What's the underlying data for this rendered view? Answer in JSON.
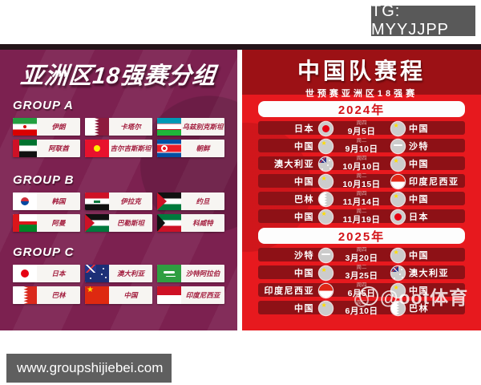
{
  "badges": {
    "tg": "TG: MYYJJPP",
    "website": "www.groupshijiebei.com"
  },
  "left_panel": {
    "title": "亚洲区18强赛分组",
    "groups": [
      {
        "label": "GROUP A",
        "teams": [
          {
            "name": "伊朗",
            "flag": "iran"
          },
          {
            "name": "卡塔尔",
            "flag": "qatar"
          },
          {
            "name": "乌兹别克斯坦",
            "flag": "uzbekistan"
          },
          {
            "name": "阿联酋",
            "flag": "uae"
          },
          {
            "name": "吉尔吉斯斯坦",
            "flag": "kyrgyzstan"
          },
          {
            "name": "朝鲜",
            "flag": "north-korea"
          }
        ]
      },
      {
        "label": "GROUP B",
        "teams": [
          {
            "name": "韩国",
            "flag": "south-korea"
          },
          {
            "name": "伊拉克",
            "flag": "iraq"
          },
          {
            "name": "约旦",
            "flag": "jordan"
          },
          {
            "name": "阿曼",
            "flag": "oman"
          },
          {
            "name": "巴勒斯坦",
            "flag": "palestine"
          },
          {
            "name": "科威特",
            "flag": "kuwait"
          }
        ]
      },
      {
        "label": "GROUP C",
        "teams": [
          {
            "name": "日本",
            "flag": "japan"
          },
          {
            "name": "澳大利亚",
            "flag": "australia"
          },
          {
            "name": "沙特阿拉伯",
            "flag": "saudi"
          },
          {
            "name": "巴林",
            "flag": "bahrain"
          },
          {
            "name": "中国",
            "flag": "china"
          },
          {
            "name": "印度尼西亚",
            "flag": "indonesia"
          }
        ]
      }
    ]
  },
  "right_panel": {
    "title": "中国队赛程",
    "subtitle": "世预赛亚洲区18强赛",
    "watermark": "@oot体育",
    "sections": [
      {
        "year": "2024年",
        "matches": [
          {
            "home": "日本",
            "home_flag": "japan",
            "weekday": "周四",
            "date": "9月5日",
            "away_flag": "china",
            "away": "中国"
          },
          {
            "home": "中国",
            "home_flag": "china",
            "weekday": "周二",
            "date": "9月10日",
            "away_flag": "saudi",
            "away": "沙特"
          },
          {
            "home": "澳大利亚",
            "home_flag": "australia",
            "weekday": "周四",
            "date": "10月10日",
            "away_flag": "china",
            "away": "中国"
          },
          {
            "home": "中国",
            "home_flag": "china",
            "weekday": "周二",
            "date": "10月15日",
            "away_flag": "indonesia",
            "away": "印度尼西亚"
          },
          {
            "home": "巴林",
            "home_flag": "bahrain",
            "weekday": "周四",
            "date": "11月14日",
            "away_flag": "china",
            "away": "中国"
          },
          {
            "home": "中国",
            "home_flag": "china",
            "weekday": "周二",
            "date": "11月19日",
            "away_flag": "japan",
            "away": "日本"
          }
        ]
      },
      {
        "year": "2025年",
        "matches": [
          {
            "home": "沙特",
            "home_flag": "saudi",
            "weekday": "周四",
            "date": "3月20日",
            "away_flag": "china",
            "away": "中国"
          },
          {
            "home": "中国",
            "home_flag": "china",
            "weekday": "周二",
            "date": "3月25日",
            "away_flag": "australia",
            "away": "澳大利亚"
          },
          {
            "home": "印度尼西亚",
            "home_flag": "indonesia",
            "weekday": "周四",
            "date": "6月5日",
            "away_flag": "china",
            "away": "中国"
          },
          {
            "home": "中国",
            "home_flag": "china",
            "weekday": "周二",
            "date": "6月10日",
            "away_flag": "bahrain",
            "away": "巴林"
          }
        ]
      }
    ]
  },
  "colors": {
    "left_background": "#7c2150",
    "right_background": "#e7191e",
    "right_header_band": "#9c1115",
    "match_row": "#8e1116",
    "pill_text": "#a31f3f",
    "year_text": "#d31419",
    "badge_gray": "#5f5f5f"
  }
}
